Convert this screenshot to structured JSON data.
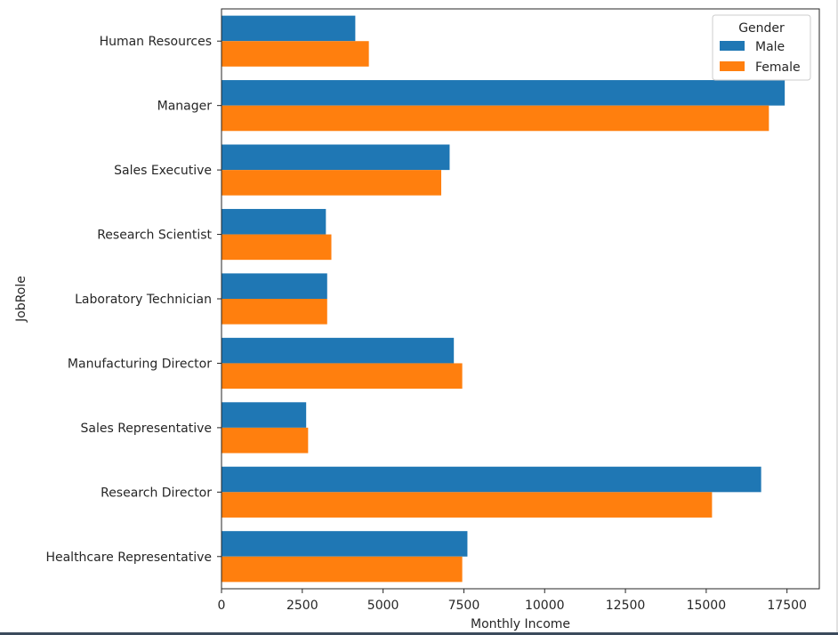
{
  "chart_data": {
    "type": "bar",
    "orientation": "horizontal",
    "categories": [
      "Human Resources",
      "Manager",
      "Sales Executive",
      "Research Scientist",
      "Laboratory Technician",
      "Manufacturing Director",
      "Sales Representative",
      "Research Director",
      "Healthcare Representative"
    ],
    "series": [
      {
        "name": "Male",
        "color": "#1f77b4",
        "values": [
          4140,
          17430,
          7060,
          3230,
          3270,
          7190,
          2620,
          16700,
          7610
        ]
      },
      {
        "name": "Female",
        "color": "#ff7f0e",
        "values": [
          4560,
          16940,
          6800,
          3400,
          3270,
          7450,
          2680,
          15180,
          7450
        ]
      }
    ],
    "xlabel": "Monthly Income",
    "ylabel": "JobRole",
    "xlim": [
      0,
      18500
    ],
    "xticks": [
      0,
      2500,
      5000,
      7500,
      10000,
      12500,
      15000,
      17500
    ],
    "xtick_labels": [
      "0",
      "2500",
      "5000",
      "7500",
      "10000",
      "12500",
      "15000",
      "17500"
    ],
    "grid": false,
    "legend": {
      "title": "Gender",
      "placement": "top-right",
      "entries": [
        "Male",
        "Female"
      ]
    }
  }
}
